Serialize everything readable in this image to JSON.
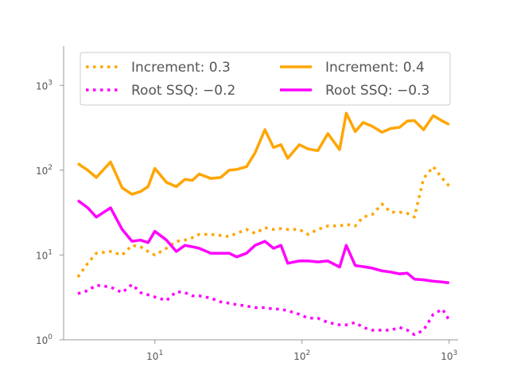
{
  "chart_data": {
    "type": "line",
    "xscale": "log",
    "yscale": "log",
    "xlim": [
      2.4,
      1150
    ],
    "ylim": [
      1,
      2900
    ],
    "x_ticks": [
      {
        "base": "10",
        "exp": "1",
        "value": 10
      },
      {
        "base": "10",
        "exp": "2",
        "value": 100
      },
      {
        "base": "10",
        "exp": "3",
        "value": 1000
      }
    ],
    "y_ticks": [
      {
        "base": "10",
        "exp": "0",
        "value": 1
      },
      {
        "base": "10",
        "exp": "1",
        "value": 10
      },
      {
        "base": "10",
        "exp": "2",
        "value": 100
      },
      {
        "base": "10",
        "exp": "3",
        "value": 1000
      }
    ],
    "grid": false,
    "legend_position": "top",
    "x": [
      3,
      3.5,
      4,
      5,
      6,
      7,
      8,
      9,
      10,
      12,
      14,
      16,
      18,
      20,
      24,
      28,
      32,
      36,
      42,
      48,
      56,
      64,
      72,
      80,
      96,
      110,
      128,
      150,
      180,
      200,
      230,
      260,
      300,
      350,
      400,
      460,
      520,
      580,
      670,
      780,
      900,
      1000
    ],
    "series": [
      {
        "name": "Increment: 0.3",
        "color": "#FFA500",
        "style": "dotted",
        "values": [
          5.5,
          8,
          10.5,
          11,
          10,
          13,
          12.5,
          11,
          10,
          12,
          14.5,
          15,
          16,
          17.5,
          17.5,
          17,
          16.5,
          18,
          20,
          18,
          21,
          20,
          20.5,
          20,
          20,
          17.5,
          20,
          22,
          22,
          23,
          22,
          28,
          30,
          40,
          32,
          32,
          31,
          28,
          80,
          110,
          80,
          65
        ]
      },
      {
        "name": "Increment: 0.4",
        "color": "#FFA500",
        "style": "solid",
        "values": [
          120,
          100,
          82,
          125,
          62,
          52,
          56,
          64,
          105,
          72,
          64,
          78,
          76,
          90,
          80,
          82,
          100,
          102,
          110,
          160,
          300,
          185,
          200,
          138,
          200,
          178,
          170,
          270,
          175,
          470,
          285,
          365,
          330,
          280,
          310,
          320,
          380,
          385,
          300,
          440,
          380,
          345
        ]
      },
      {
        "name": "Root SSQ: −0.2",
        "color": "#FF00FF",
        "style": "dotted",
        "values": [
          3.5,
          3.8,
          4.4,
          4.2,
          3.6,
          4.5,
          3.6,
          3.4,
          3.2,
          2.9,
          3.7,
          3.6,
          3.3,
          3.3,
          3.1,
          2.8,
          2.7,
          2.6,
          2.5,
          2.4,
          2.4,
          2.3,
          2.3,
          2.2,
          2.0,
          1.8,
          1.8,
          1.6,
          1.5,
          1.5,
          1.6,
          1.4,
          1.3,
          1.3,
          1.3,
          1.4,
          1.3,
          1.15,
          1.3,
          2.0,
          2.3,
          1.7
        ]
      },
      {
        "name": "Root SSQ: −0.3",
        "color": "#FF00FF",
        "style": "solid",
        "values": [
          44,
          36,
          28,
          36,
          20,
          14.5,
          15,
          14,
          19,
          15,
          11,
          13,
          12.5,
          12,
          10.5,
          10.5,
          10.5,
          9.5,
          10.5,
          13,
          14.5,
          12,
          13,
          8,
          8.5,
          8.5,
          8.3,
          8.5,
          7.2,
          13,
          7.5,
          7.3,
          7,
          6.5,
          6.3,
          6,
          6.1,
          5.2,
          5.1,
          4.9,
          4.8,
          4.7
        ]
      }
    ]
  }
}
